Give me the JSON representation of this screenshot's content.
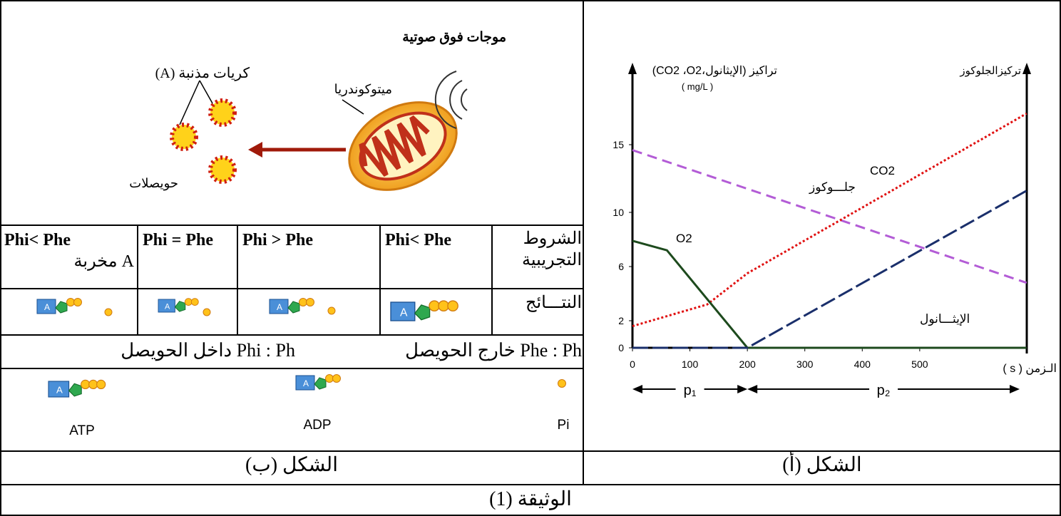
{
  "figure_b": {
    "label": "الشكل (ب)",
    "diagram": {
      "ultrasound": "موجات فوق صوتية",
      "mitochondria": "ميتوكوندريا",
      "particles": "كريات مذنبة (A)",
      "vesicles": "حويصلات"
    },
    "table": {
      "row_headers": [
        "الشروط التجريبية",
        "النتـــائج"
      ],
      "conditions": [
        {
          "text": "Phi< Phe"
        },
        {
          "text": "Phi > Phe"
        },
        {
          "text": "Phi = Phe"
        },
        {
          "text": "Phi< Phe",
          "note": "A مخربة"
        }
      ]
    },
    "key": [
      "Phe : Ph خارج الحويصل",
      "Phi : Ph داخل الحويصل"
    ],
    "molecules": [
      "ATP",
      "ADP",
      "Pi"
    ],
    "icon_letter": "A"
  },
  "figure_a": {
    "label": "الشكل (أ)"
  },
  "chart_data": {
    "type": "line",
    "ylabel": "تراكيز (الإيثانول،CO2 ،O2)",
    "yunit": "( mg/L )",
    "y2label": "تركيزالجلوكوز",
    "xlabel": "الـزمن ( s )",
    "xlim": [
      0,
      700
    ],
    "xticks": [
      0,
      100,
      200,
      300,
      400,
      500
    ],
    "ylim": [
      0,
      16
    ],
    "yticks": [
      0,
      2,
      6,
      10,
      15
    ],
    "phases": [
      "p₁",
      "p₂"
    ],
    "series": [
      {
        "name": "جلـــوكوز",
        "color": "#b35cd6",
        "x": [
          0,
          686
        ],
        "values": [
          14.6,
          4.8
        ]
      },
      {
        "name": "CO2",
        "color": "#e01010",
        "x": [
          0,
          130,
          200,
          686
        ],
        "values": [
          1.6,
          3.2,
          5.5,
          17.3
        ]
      },
      {
        "name": "O2",
        "color": "#1d4a1d",
        "x": [
          0,
          60,
          200,
          686
        ],
        "values": [
          7.9,
          7.2,
          0,
          0
        ]
      },
      {
        "name": "الإيثـــانول",
        "color": "#1a2f6b",
        "x": [
          0,
          200,
          686
        ],
        "values": [
          0,
          0,
          11.6
        ]
      }
    ]
  },
  "document_label": "الوثيقة (1)"
}
